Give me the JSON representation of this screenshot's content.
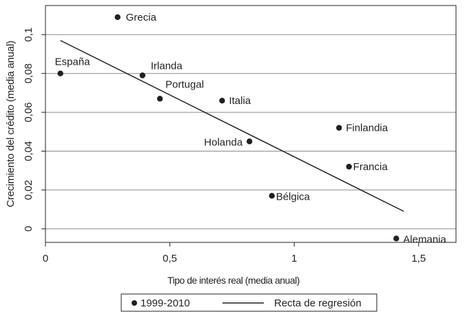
{
  "chart_data": {
    "type": "scatter",
    "xlabel": "Tipo de interés real (media anual)",
    "ylabel": "Crecimiento del crédito (media anual)",
    "xlim": [
      0,
      1.65
    ],
    "ylim": [
      -0.007,
      0.115
    ],
    "x_ticks": [
      0,
      0.5,
      1,
      1.5
    ],
    "x_tick_labels": [
      "0",
      "0,5",
      "1",
      "1,5"
    ],
    "y_ticks": [
      0,
      0.02,
      0.04,
      0.06,
      0.08,
      0.1
    ],
    "y_tick_labels": [
      "0",
      "0,02",
      "0,04",
      "0,06",
      "0,08",
      "0,1"
    ],
    "grid": "horizontal",
    "legend_position": "bottom",
    "series": [
      {
        "name": "1999-2010",
        "kind": "points",
        "points": [
          {
            "label": "Grecia",
            "x": 0.29,
            "y": 0.109
          },
          {
            "label": "España",
            "x": 0.06,
            "y": 0.08
          },
          {
            "label": "Irlanda",
            "x": 0.39,
            "y": 0.079
          },
          {
            "label": "Portugal",
            "x": 0.46,
            "y": 0.067
          },
          {
            "label": "Italia",
            "x": 0.71,
            "y": 0.066
          },
          {
            "label": "Finlandia",
            "x": 1.18,
            "y": 0.052
          },
          {
            "label": "Holanda",
            "x": 0.82,
            "y": 0.045
          },
          {
            "label": "Francia",
            "x": 1.22,
            "y": 0.032
          },
          {
            "label": "Bélgica",
            "x": 0.91,
            "y": 0.017
          },
          {
            "label": "Alemania",
            "x": 1.41,
            "y": -0.005
          }
        ]
      },
      {
        "name": "Recta de regresión",
        "kind": "line",
        "points": [
          {
            "x": 0.06,
            "y": 0.097
          },
          {
            "x": 1.44,
            "y": 0.009
          }
        ]
      }
    ]
  }
}
